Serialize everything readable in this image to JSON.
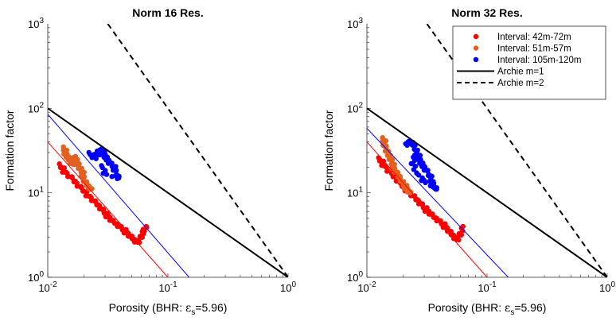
{
  "chart_data": [
    {
      "type": "scatter",
      "title": "Norm 16 Res.",
      "xlabel": "Porosity (BHR: ε_s=5.96)",
      "xlabel_parts": {
        "main": "Porosity (BHR: ",
        "greek": "ε",
        "sub": "s",
        "rest": "=5.96)"
      },
      "ylabel": "Formation factor",
      "xscale": "log",
      "yscale": "log",
      "xlim": [
        0.01,
        1
      ],
      "ylim": [
        1,
        1000
      ],
      "x_ticks": [
        0.01,
        0.1,
        1
      ],
      "x_tick_labels": [
        {
          "base": "10",
          "exp": "-2"
        },
        {
          "base": "10",
          "exp": "-1"
        },
        {
          "base": "10",
          "exp": "0"
        }
      ],
      "y_ticks": [
        1,
        10,
        100,
        1000
      ],
      "y_tick_labels": [
        {
          "base": "10",
          "exp": "0"
        },
        {
          "base": "10",
          "exp": "1"
        },
        {
          "base": "10",
          "exp": "2"
        },
        {
          "base": "10",
          "exp": "3"
        }
      ],
      "grid": false,
      "legend": null,
      "series": [
        {
          "name": "Interval: 42m-72m",
          "color": "#ff0000",
          "x": [
            0.0125,
            0.0135,
            0.0145,
            0.016,
            0.0175,
            0.019,
            0.021,
            0.023,
            0.025,
            0.027,
            0.029,
            0.031,
            0.033,
            0.035,
            0.038,
            0.041,
            0.044,
            0.047,
            0.05,
            0.053,
            0.056,
            0.06,
            0.063,
            0.066
          ],
          "y": [
            22,
            19,
            17,
            15,
            13,
            11.5,
            10,
            8.8,
            7.8,
            7,
            6.2,
            5.6,
            5.1,
            4.6,
            4.3,
            3.9,
            3.6,
            3.3,
            3.0,
            2.8,
            2.6,
            3.1,
            3.6,
            4.0
          ]
        },
        {
          "name": "Interval: 51m-57m",
          "color": "#e26120",
          "x": [
            0.0135,
            0.014,
            0.0145,
            0.015,
            0.0155,
            0.016,
            0.0165,
            0.017,
            0.0175,
            0.018,
            0.019,
            0.0195,
            0.02,
            0.021,
            0.022,
            0.023
          ],
          "y": [
            35,
            31,
            28,
            26,
            24,
            22,
            25,
            27,
            24,
            21,
            19,
            17,
            15,
            13,
            12,
            11
          ]
        },
        {
          "name": "Interval: 105m-120m",
          "color": "#0000ff",
          "x": [
            0.022,
            0.024,
            0.025,
            0.026,
            0.027,
            0.028,
            0.029,
            0.03,
            0.031,
            0.032,
            0.034,
            0.036,
            0.037,
            0.039,
            0.03,
            0.028
          ],
          "y": [
            30,
            28,
            26,
            29,
            32,
            33,
            31,
            28,
            26,
            24,
            22,
            20,
            18,
            15,
            17,
            21
          ]
        }
      ],
      "fit_lines": [
        {
          "color": "#ff0000",
          "from": [
            0.01,
            40
          ],
          "to": [
            0.1,
            1
          ]
        },
        {
          "color": "#0000ff",
          "from": [
            0.01,
            85
          ],
          "to": [
            0.15,
            1
          ]
        }
      ],
      "reference_lines": [
        {
          "name": "Archie m=1",
          "style": "solid",
          "color": "#000000",
          "from": [
            0.01,
            100
          ],
          "to": [
            1,
            1
          ]
        },
        {
          "name": "Archie m=2",
          "style": "dashed",
          "color": "#000000",
          "from": [
            0.0316,
            1000
          ],
          "to": [
            1,
            1
          ]
        }
      ]
    },
    {
      "type": "scatter",
      "title": "Norm 32 Res.",
      "xlabel": "Porosity (BHR: ε_s=5.96)",
      "xlabel_parts": {
        "main": "Porosity (BHR: ",
        "greek": "ε",
        "sub": "s",
        "rest": "=5.96)"
      },
      "ylabel": "Formation factor",
      "xscale": "log",
      "yscale": "log",
      "xlim": [
        0.01,
        1
      ],
      "ylim": [
        1,
        1000
      ],
      "x_ticks": [
        0.01,
        0.1,
        1
      ],
      "x_tick_labels": [
        {
          "base": "10",
          "exp": "-2"
        },
        {
          "base": "10",
          "exp": "-1"
        },
        {
          "base": "10",
          "exp": "0"
        }
      ],
      "y_ticks": [
        1,
        10,
        100,
        1000
      ],
      "y_tick_labels": [
        {
          "base": "10",
          "exp": "0"
        },
        {
          "base": "10",
          "exp": "1"
        },
        {
          "base": "10",
          "exp": "2"
        },
        {
          "base": "10",
          "exp": "3"
        }
      ],
      "grid": false,
      "legend": "top-right",
      "series": [
        {
          "name": "Interval: 42m-72m",
          "color": "#ff0000",
          "x": [
            0.0125,
            0.0135,
            0.0145,
            0.016,
            0.0175,
            0.019,
            0.021,
            0.023,
            0.025,
            0.027,
            0.029,
            0.031,
            0.033,
            0.035,
            0.038,
            0.041,
            0.044,
            0.047,
            0.05,
            0.053,
            0.056,
            0.06,
            0.063
          ],
          "y": [
            26,
            23,
            20,
            17,
            15,
            13,
            11.5,
            10,
            9,
            8,
            7.2,
            6.5,
            6,
            5.5,
            5,
            4.6,
            4.2,
            3.8,
            3.4,
            3.1,
            2.8,
            3.3,
            4.0
          ]
        },
        {
          "name": "Interval: 51m-57m",
          "color": "#e26120",
          "x": [
            0.0135,
            0.014,
            0.0145,
            0.015,
            0.0155,
            0.016,
            0.0165,
            0.017,
            0.018,
            0.019,
            0.02,
            0.021,
            0.022,
            0.023
          ],
          "y": [
            45,
            40,
            34,
            30,
            27,
            24,
            21,
            19,
            17,
            15,
            13,
            12,
            11,
            10
          ]
        },
        {
          "name": "Interval: 105m-120m",
          "color": "#0000ff",
          "x": [
            0.021,
            0.022,
            0.023,
            0.024,
            0.025,
            0.026,
            0.027,
            0.028,
            0.029,
            0.03,
            0.032,
            0.034,
            0.036,
            0.038,
            0.03,
            0.026,
            0.024,
            0.025
          ],
          "y": [
            38,
            40,
            41,
            39,
            36,
            30,
            27,
            24,
            22,
            20,
            18,
            15,
            13,
            11,
            14,
            17,
            22,
            28
          ]
        }
      ],
      "fit_lines": [
        {
          "color": "#ff0000",
          "from": [
            0.01,
            40
          ],
          "to": [
            0.1,
            1
          ]
        },
        {
          "color": "#0000ff",
          "from": [
            0.01,
            58
          ],
          "to": [
            0.15,
            1
          ]
        }
      ],
      "reference_lines": [
        {
          "name": "Archie m=1",
          "style": "solid",
          "color": "#000000",
          "from": [
            0.01,
            100
          ],
          "to": [
            1,
            1
          ]
        },
        {
          "name": "Archie m=2",
          "style": "dashed",
          "color": "#000000",
          "from": [
            0.0316,
            1000
          ],
          "to": [
            1,
            1
          ]
        }
      ]
    }
  ]
}
